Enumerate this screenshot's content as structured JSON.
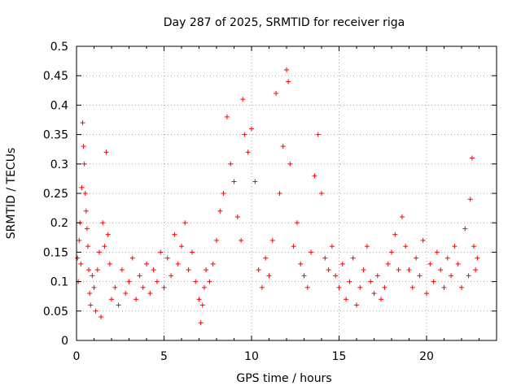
{
  "chart_data": {
    "type": "scatter",
    "title": "Day 287 of 2025, SRMTID for receiver riga",
    "xlabel": "GPS time / hours",
    "ylabel": "SRMTID / TECUs",
    "xlim": [
      0,
      24
    ],
    "ylim": [
      0,
      0.5
    ],
    "x_ticks": [
      0,
      5,
      10,
      15,
      20
    ],
    "x_tick_labels": [
      "0",
      "5",
      "10",
      "15",
      "20"
    ],
    "y_ticks": [
      0,
      0.05,
      0.1,
      0.15,
      0.2,
      0.25,
      0.3,
      0.35,
      0.4,
      0.45,
      0.5
    ],
    "y_tick_labels": [
      "0",
      "0.05",
      "0.1",
      "0.15",
      "0.2",
      "0.25",
      "0.3",
      "0.35",
      "0.4",
      "0.45",
      "0.5"
    ],
    "grid": true,
    "legend": "none",
    "marker": "plus",
    "color": "#ff0000",
    "series": [
      {
        "x": [
          0.05,
          0.1,
          0.15,
          0.2,
          0.25,
          0.3,
          0.35,
          0.4,
          0.45,
          0.5,
          0.55,
          0.6,
          0.65,
          0.7,
          0.75,
          0.8,
          0.9,
          1.0,
          1.1,
          1.2,
          1.3,
          1.4,
          1.5,
          1.6,
          1.7,
          1.8,
          1.9,
          2.0,
          2.2,
          2.4,
          2.6,
          2.8,
          3.0,
          3.2,
          3.4,
          3.6,
          3.8,
          4.0,
          4.2,
          4.4,
          4.6,
          4.8,
          5.0,
          5.2,
          5.4,
          5.6,
          5.8,
          6.0,
          6.2,
          6.4,
          6.6,
          6.8,
          7.0,
          7.1,
          7.2,
          7.3,
          7.4,
          7.6,
          7.8,
          8.0,
          8.2,
          8.4,
          8.6,
          8.8,
          9.0,
          9.2,
          9.4,
          9.5,
          9.6,
          9.8,
          10.0,
          10.2,
          10.4,
          10.6,
          10.8,
          11.0,
          11.2,
          11.4,
          11.6,
          11.8,
          12.0,
          12.1,
          12.2,
          12.4,
          12.6,
          12.8,
          13.0,
          13.2,
          13.4,
          13.6,
          13.8,
          14.0,
          14.2,
          14.4,
          14.6,
          14.8,
          15.0,
          15.2,
          15.4,
          15.6,
          15.8,
          16.0,
          16.2,
          16.4,
          16.6,
          16.8,
          17.0,
          17.2,
          17.4,
          17.6,
          17.8,
          18.0,
          18.2,
          18.4,
          18.6,
          18.8,
          19.0,
          19.2,
          19.4,
          19.6,
          19.8,
          20.0,
          20.2,
          20.4,
          20.6,
          20.8,
          21.0,
          21.2,
          21.4,
          21.6,
          21.8,
          22.0,
          22.2,
          22.4,
          22.5,
          22.6,
          22.7,
          22.8,
          22.9
        ],
        "y": [
          0.14,
          0.1,
          0.17,
          0.2,
          0.13,
          0.26,
          0.37,
          0.33,
          0.3,
          0.25,
          0.22,
          0.19,
          0.16,
          0.12,
          0.08,
          0.06,
          0.11,
          0.09,
          0.05,
          0.12,
          0.15,
          0.04,
          0.2,
          0.16,
          0.32,
          0.18,
          0.13,
          0.07,
          0.09,
          0.06,
          0.12,
          0.08,
          0.1,
          0.14,
          0.07,
          0.11,
          0.09,
          0.13,
          0.08,
          0.12,
          0.1,
          0.15,
          0.09,
          0.14,
          0.11,
          0.18,
          0.13,
          0.16,
          0.2,
          0.12,
          0.15,
          0.1,
          0.07,
          0.03,
          0.06,
          0.09,
          0.12,
          0.1,
          0.13,
          0.17,
          0.22,
          0.25,
          0.38,
          0.3,
          0.27,
          0.21,
          0.17,
          0.41,
          0.35,
          0.32,
          0.36,
          0.27,
          0.12,
          0.09,
          0.14,
          0.11,
          0.17,
          0.42,
          0.25,
          0.33,
          0.46,
          0.44,
          0.3,
          0.16,
          0.2,
          0.13,
          0.11,
          0.09,
          0.15,
          0.28,
          0.35,
          0.25,
          0.14,
          0.12,
          0.16,
          0.11,
          0.09,
          0.13,
          0.07,
          0.1,
          0.14,
          0.06,
          0.09,
          0.12,
          0.16,
          0.1,
          0.08,
          0.11,
          0.07,
          0.09,
          0.13,
          0.15,
          0.18,
          0.12,
          0.21,
          0.16,
          0.12,
          0.09,
          0.14,
          0.11,
          0.17,
          0.08,
          0.13,
          0.1,
          0.15,
          0.12,
          0.09,
          0.14,
          0.11,
          0.16,
          0.13,
          0.09,
          0.19,
          0.11,
          0.24,
          0.31,
          0.16,
          0.12,
          0.14
        ]
      }
    ]
  }
}
